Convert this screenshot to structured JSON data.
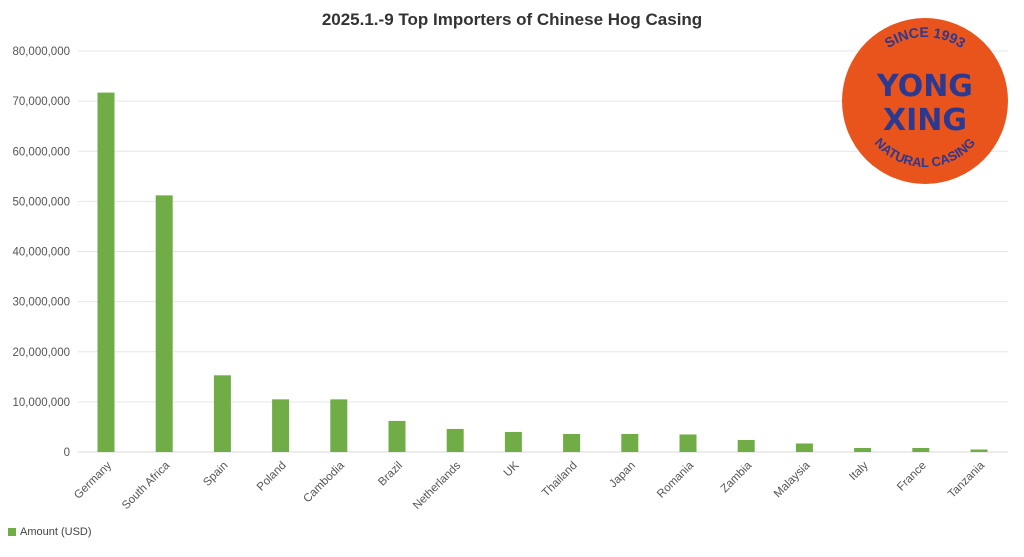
{
  "chart_data": {
    "type": "bar",
    "title": "2025.1.-9 Top Importers of Chinese Hog Casing",
    "xlabel": "",
    "ylabel": "",
    "categories": [
      "Germany",
      "South Africa",
      "Spain",
      "Poland",
      "Cambodia",
      "Brazil",
      "Netherlands",
      "UK",
      "Thailand",
      "Japan",
      "Romania",
      "Zambia",
      "Malaysia",
      "Italy",
      "France",
      "Tanzania"
    ],
    "series": [
      {
        "name": "Amount (USD)",
        "values": [
          71700000,
          51200000,
          15300000,
          10500000,
          10500000,
          6200000,
          4600000,
          4000000,
          3600000,
          3600000,
          3500000,
          2400000,
          1700000,
          800000,
          800000,
          500000
        ]
      }
    ],
    "ylim": [
      0,
      80000000
    ],
    "yticks": [
      "0",
      "10,000,000",
      "20,000,000",
      "30,000,000",
      "40,000,000",
      "50,000,000",
      "60,000,000",
      "70,000,000",
      "80,000,000"
    ],
    "grid": true,
    "legend": "bottom-left",
    "color": "#70ad47"
  },
  "logo": {
    "top": "SINCE 1993",
    "line1": "YONG",
    "line2": "XING",
    "bottom": "NATURAL CASING",
    "bg": "#e8541c",
    "text_color": "#2b3990"
  }
}
